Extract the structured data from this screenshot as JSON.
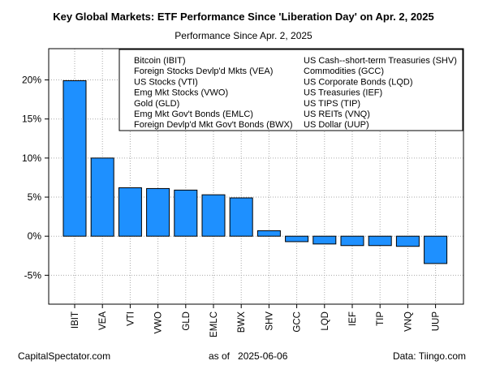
{
  "chart_data": {
    "type": "bar",
    "title": "Key Global Markets: ETF Performance Since 'Liberation Day' on Apr. 2, 2025",
    "subtitle": "Performance Since Apr. 2, 2025",
    "categories": [
      "IBIT",
      "VEA",
      "VTI",
      "VWO",
      "GLD",
      "EMLC",
      "BWX",
      "SHV",
      "GCC",
      "LQD",
      "IEF",
      "TIP",
      "VNQ",
      "UUP"
    ],
    "values": [
      19.9,
      10.0,
      6.2,
      6.1,
      5.9,
      5.3,
      4.9,
      0.7,
      -0.7,
      -1.0,
      -1.2,
      -1.2,
      -1.3,
      -3.5
    ],
    "ylim": [
      -8.7,
      24
    ],
    "yticks": [
      -5,
      0,
      5,
      10,
      15,
      20
    ],
    "ytick_labels": [
      "-5%",
      "0%",
      "5%",
      "10%",
      "15%",
      "20%"
    ],
    "bar_color": "#1E90FF",
    "grid": true,
    "legend_position": "top-right",
    "legend": [
      "Bitcoin (IBIT)",
      "Foreign Stocks Devlp'd Mkts (VEA)",
      "US Stocks (VTI)",
      "Emg Mkt Stocks (VWO)",
      "Gold (GLD)",
      "Emg Mkt Gov't Bonds (EMLC)",
      "Foreign Devlp'd Mkt Gov't Bonds (BWX)",
      "US Cash--short-term Treasuries (SHV)",
      "Commodities (GCC)",
      "US Corporate Bonds (LQD)",
      "US Treasuries (IEF)",
      "US TIPS (TIP)",
      "US REITs (VNQ)",
      "US Dollar (UUP)"
    ]
  },
  "footer": {
    "left": "CapitalSpectator.com",
    "middle": "as of   2025-06-06",
    "right": "Data: Tiingo.com"
  }
}
